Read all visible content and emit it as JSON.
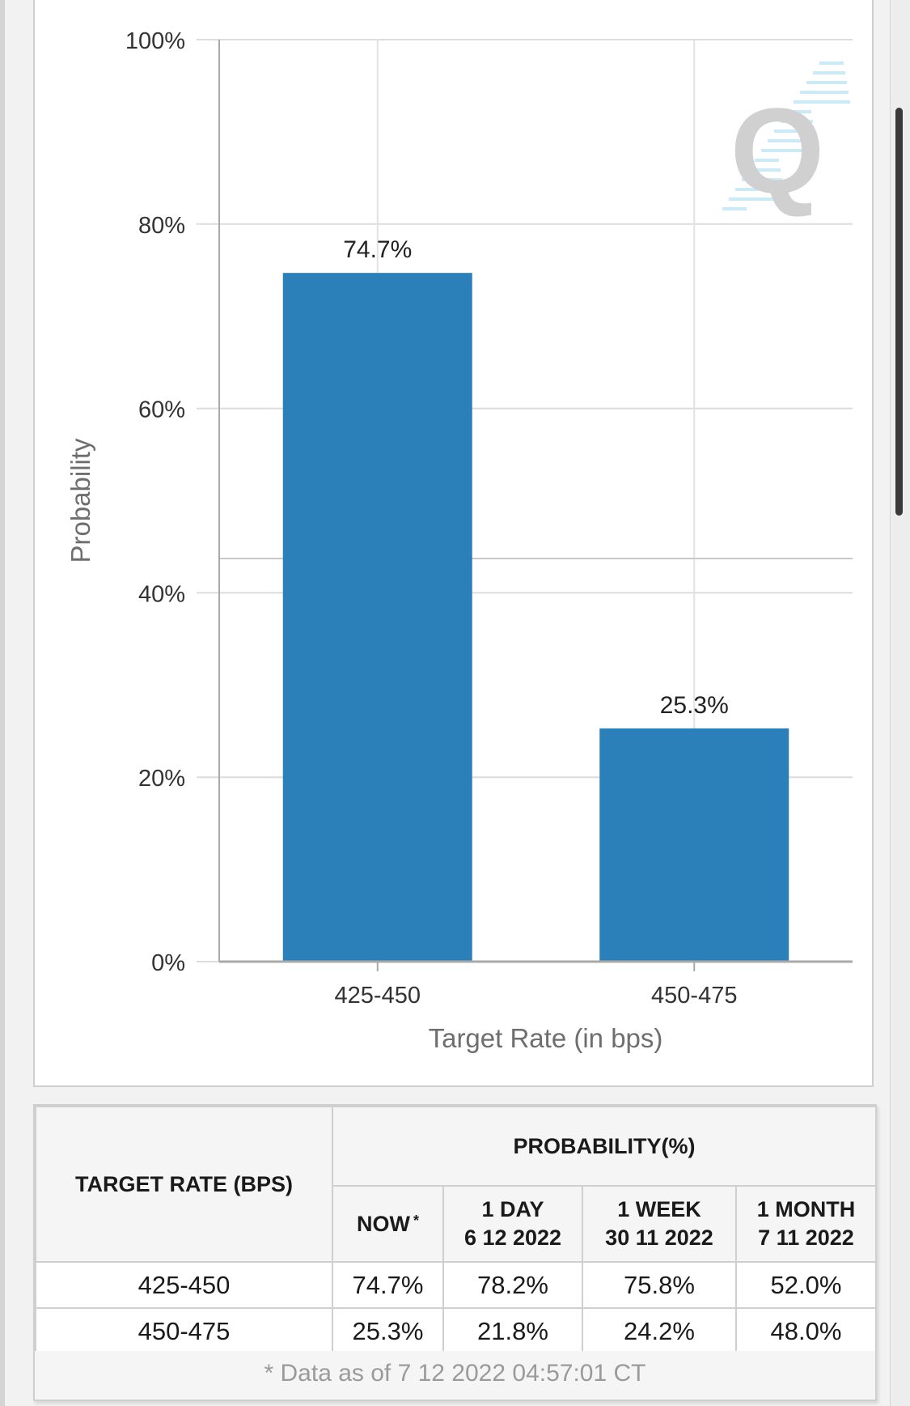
{
  "chart_data": {
    "type": "bar",
    "categories": [
      "425-450",
      "450-475"
    ],
    "values": [
      74.7,
      25.3
    ],
    "data_labels": [
      "74.7%",
      "25.3%"
    ],
    "title": "",
    "xlabel": "Target Rate (in bps)",
    "ylabel": "Probability",
    "ylim": [
      0,
      100
    ],
    "y_ticks": [
      0,
      20,
      40,
      60,
      80,
      100
    ],
    "y_tick_labels": [
      "0%",
      "20%",
      "40%",
      "60%",
      "80%",
      "100%"
    ],
    "grid": true,
    "bar_color": "#2b80b9"
  },
  "watermark": {
    "letter": "Q",
    "icon": "quikstrike-logo-icon"
  },
  "table": {
    "rate_header": "TARGET RATE (BPS)",
    "group_header": "PROBABILITY(%)",
    "columns": [
      {
        "line1": "NOW",
        "line2": "",
        "star": "*"
      },
      {
        "line1": "1 DAY",
        "line2": "6 12 2022",
        "star": ""
      },
      {
        "line1": "1 WEEK",
        "line2": "30 11 2022",
        "star": ""
      },
      {
        "line1": "1 MONTH",
        "line2": "7 11 2022",
        "star": ""
      }
    ],
    "rows": [
      {
        "rate": "425-450",
        "values": [
          "74.7%",
          "78.2%",
          "75.8%",
          "52.0%"
        ]
      },
      {
        "rate": "450-475",
        "values": [
          "25.3%",
          "21.8%",
          "24.2%",
          "48.0%"
        ]
      }
    ],
    "footnote": "* Data as of 7 12 2022 04:57:01 CT",
    "now_highlight_color": "#fbfbd8"
  }
}
